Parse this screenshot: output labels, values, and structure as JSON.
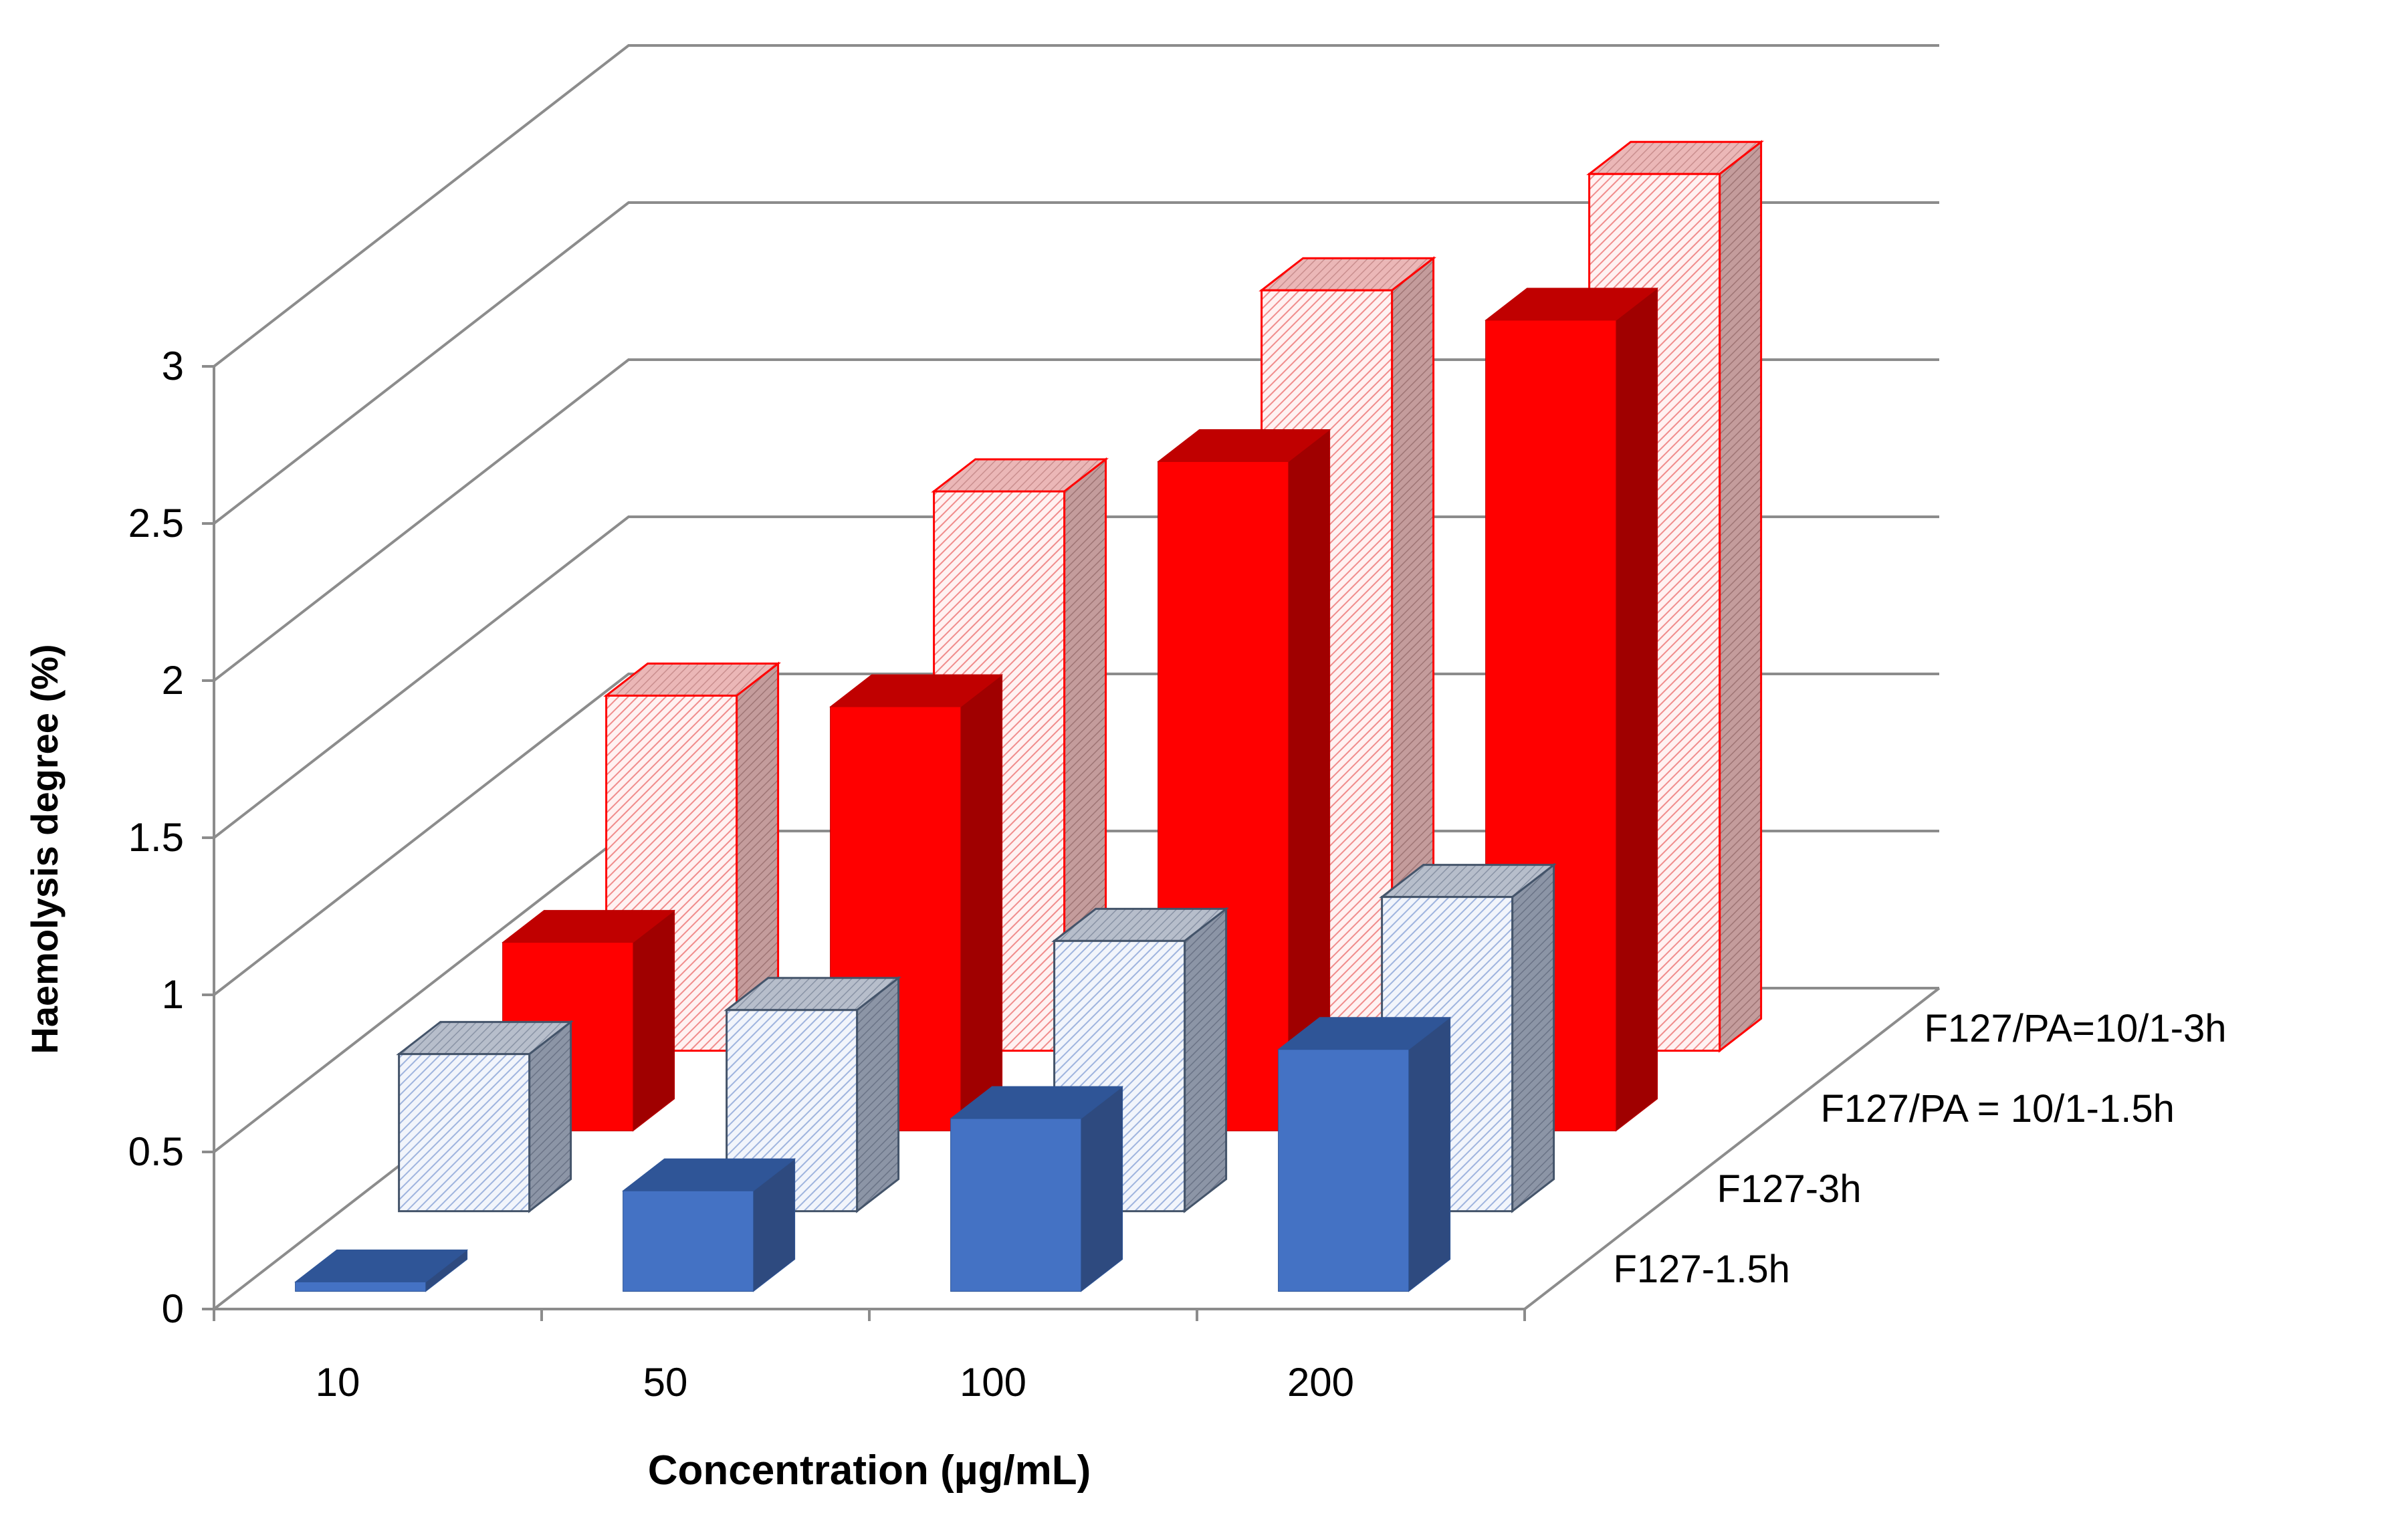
{
  "chart_data": {
    "type": "bar",
    "variant": "3d-clustered-depth",
    "title": "",
    "xlabel": "Concentration (µg/mL)",
    "ylabel": "Haemolysis degree (%)",
    "ylim": [
      0,
      3
    ],
    "yticks": [
      "0",
      "0.5",
      "1",
      "1.5",
      "2",
      "2.5",
      "3"
    ],
    "grid": true,
    "legend": "right, along depth axis",
    "categories": [
      "10",
      "50",
      "100",
      "200"
    ],
    "series": [
      {
        "name": "F127-1.5h",
        "values": [
          0.03,
          0.32,
          0.55,
          0.77
        ],
        "style": "solid",
        "colors": {
          "front": "#4472C4",
          "top": "#2F5597",
          "side": "#2E4A7F",
          "edge": "#2F5597"
        }
      },
      {
        "name": "F127-3h",
        "values": [
          0.5,
          0.64,
          0.86,
          1.0
        ],
        "style": "hatched",
        "colors": {
          "front": "#F2F5FB",
          "hatch": "#9FB4DE",
          "top": "#A5AEBE",
          "side": "#7A8496",
          "edge": "#44546A"
        }
      },
      {
        "name": "F127/PA = 10/1-1.5h",
        "values": [
          0.6,
          1.35,
          2.13,
          2.58
        ],
        "style": "solid",
        "colors": {
          "front": "#FF0000",
          "top": "#C00000",
          "side": "#A00000",
          "edge": "#C00000"
        }
      },
      {
        "name": "F127/PA=10/1-3h",
        "values": [
          1.13,
          1.78,
          2.42,
          2.79
        ],
        "style": "hatched",
        "colors": {
          "front": "#FFF0F0",
          "hatch": "#F08C8C",
          "top": "#E2A6A6",
          "side": "#B88A8A",
          "edge": "#FF0000"
        }
      }
    ]
  }
}
